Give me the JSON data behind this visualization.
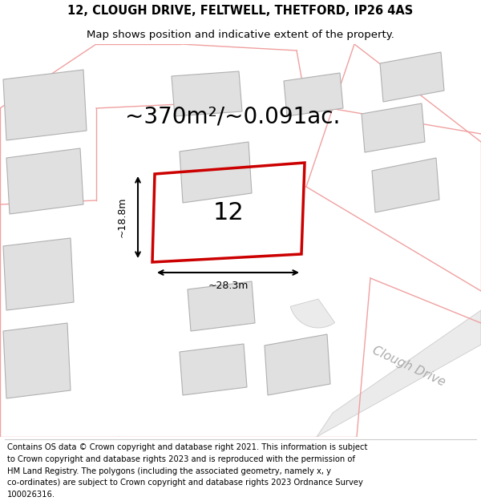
{
  "title_line1": "12, CLOUGH DRIVE, FELTWELL, THETFORD, IP26 4AS",
  "title_line2": "Map shows position and indicative extent of the property.",
  "area_text": "~370m²/~0.091ac.",
  "label_number": "12",
  "dim_width": "~28.3m",
  "dim_height": "~18.8m",
  "road_label": "Clough Drive",
  "footer_lines": [
    "Contains OS data © Crown copyright and database right 2021. This information is subject",
    "to Crown copyright and database rights 2023 and is reproduced with the permission of",
    "HM Land Registry. The polygons (including the associated geometry, namely x, y",
    "co-ordinates) are subject to Crown copyright and database rights 2023 Ordnance Survey",
    "100026316."
  ],
  "bg_color": "#ffffff",
  "map_bg": "#ffffff",
  "building_fill": "#e0e0e0",
  "building_edge": "#b0b0b0",
  "red_color": "#cc0000",
  "pink_color": "#f0a0a0",
  "title_fontsize": 10.5,
  "subtitle_fontsize": 9.5,
  "area_fontsize": 20,
  "number_fontsize": 22,
  "footer_fontsize": 7.2,
  "road_label_fontsize": 11,
  "dim_fontsize": 9
}
